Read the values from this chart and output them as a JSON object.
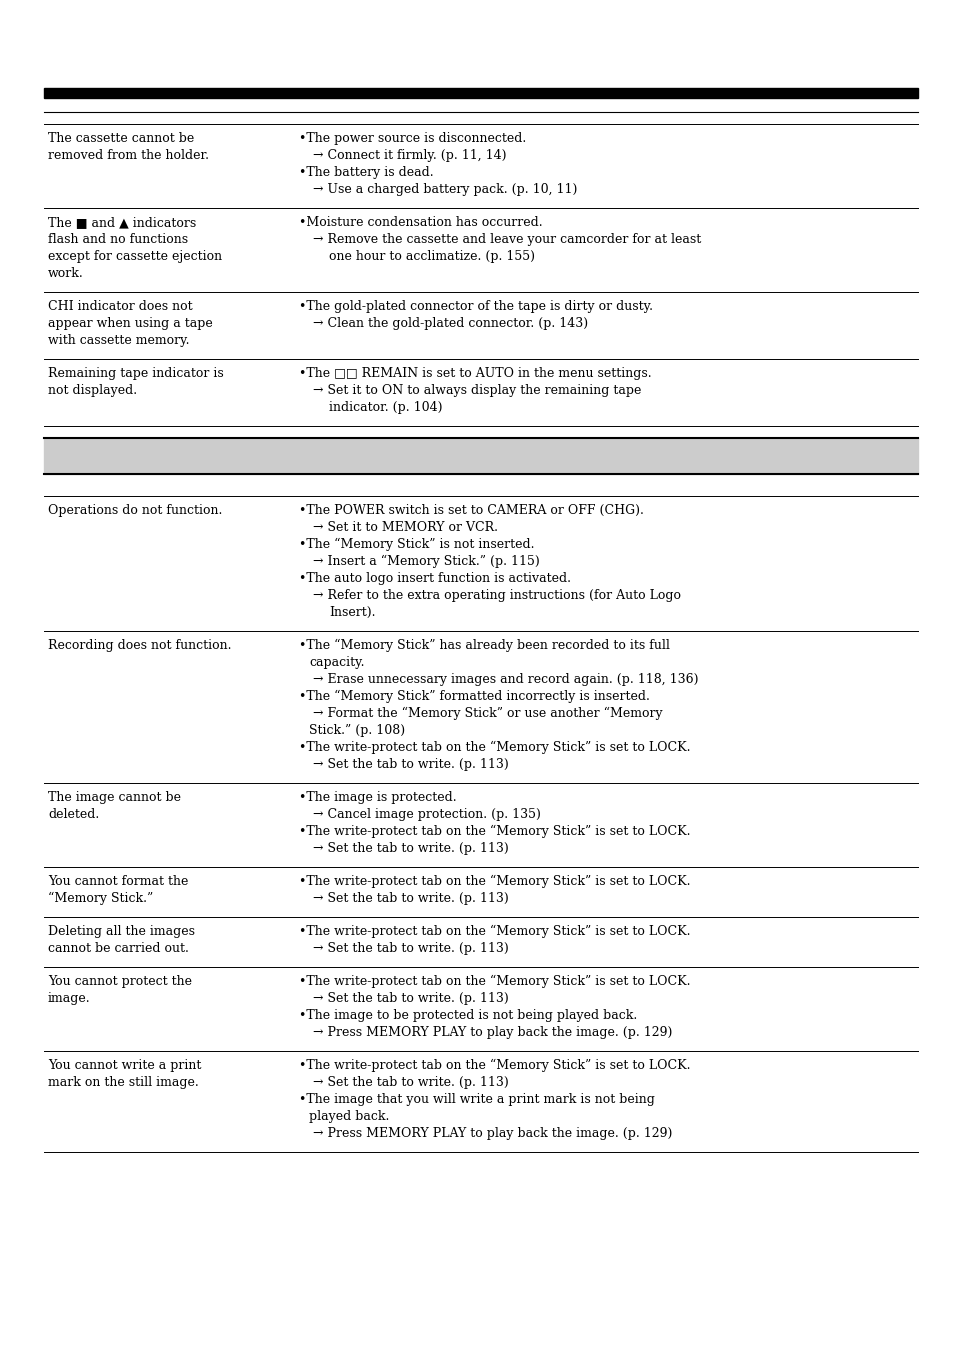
{
  "bg_color": "#ffffff",
  "text_color": "#000000",
  "gray_bar_color": "#cccccc",
  "rows_section1": [
    {
      "left": [
        "The cassette cannot be",
        "removed from the holder."
      ],
      "right": [
        {
          "type": "bullet",
          "text": "The power source is disconnected."
        },
        {
          "type": "arrow",
          "text": "Connect it firmly. (p. 11, 14)"
        },
        {
          "type": "bullet",
          "text": "The battery is dead."
        },
        {
          "type": "arrow",
          "text": "Use a charged battery pack. (p. 10, 11)"
        }
      ]
    },
    {
      "left": [
        "The ■ and ▲ indicators",
        "flash and no functions",
        "except for cassette ejection",
        "work."
      ],
      "right": [
        {
          "type": "bullet",
          "text": "Moisture condensation has occurred."
        },
        {
          "type": "arrow",
          "text": "Remove the cassette and leave your camcorder for at least"
        },
        {
          "type": "cont",
          "text": "one hour to acclimatize. (p. 155)"
        }
      ]
    },
    {
      "left": [
        "CHI indicator does not",
        "appear when using a tape",
        "with cassette memory."
      ],
      "right": [
        {
          "type": "bullet",
          "text": "The gold-plated connector of the tape is dirty or dusty."
        },
        {
          "type": "arrow",
          "text": "Clean the gold-plated connector. (p. 143)"
        }
      ]
    },
    {
      "left": [
        "Remaining tape indicator is",
        "not displayed."
      ],
      "right": [
        {
          "type": "bullet",
          "text": "The □□ REMAIN is set to AUTO in the menu settings."
        },
        {
          "type": "arrow",
          "text": "Set it to ON to always display the remaining tape"
        },
        {
          "type": "cont",
          "text": "indicator. (p. 104)"
        }
      ]
    }
  ],
  "rows_section2": [
    {
      "left": [
        "Operations do not function."
      ],
      "right": [
        {
          "type": "bullet",
          "text": "The POWER switch is set to CAMERA or OFF (CHG)."
        },
        {
          "type": "arrow",
          "text": "Set it to MEMORY or VCR."
        },
        {
          "type": "bullet",
          "text": "The “Memory Stick” is not inserted."
        },
        {
          "type": "arrow",
          "text": "Insert a “Memory Stick.” (p. 115)"
        },
        {
          "type": "bullet",
          "text": "The auto logo insert function is activated."
        },
        {
          "type": "arrow",
          "text": "Refer to the extra operating instructions (for Auto Logo"
        },
        {
          "type": "cont",
          "text": "Insert)."
        }
      ]
    },
    {
      "left": [
        "Recording does not function."
      ],
      "right": [
        {
          "type": "bullet",
          "text": "The “Memory Stick” has already been recorded to its full"
        },
        {
          "type": "cont2",
          "text": "capacity."
        },
        {
          "type": "arrow",
          "text": "Erase unnecessary images and record again. (p. 118, 136)"
        },
        {
          "type": "bullet",
          "text": "The “Memory Stick” formatted incorrectly is inserted."
        },
        {
          "type": "arrow",
          "text": "Format the “Memory Stick” or use another “Memory"
        },
        {
          "type": "cont2",
          "text": "Stick.” (p. 108)"
        },
        {
          "type": "bullet",
          "text": "The write-protect tab on the “Memory Stick” is set to LOCK."
        },
        {
          "type": "arrow",
          "text": "Set the tab to write. (p. 113)"
        }
      ]
    },
    {
      "left": [
        "The image cannot be",
        "deleted."
      ],
      "right": [
        {
          "type": "bullet",
          "text": "The image is protected."
        },
        {
          "type": "arrow",
          "text": "Cancel image protection. (p. 135)"
        },
        {
          "type": "bullet",
          "text": "The write-protect tab on the “Memory Stick” is set to LOCK."
        },
        {
          "type": "arrow",
          "text": "Set the tab to write. (p. 113)"
        }
      ]
    },
    {
      "left": [
        "You cannot format the",
        "“Memory Stick.”"
      ],
      "right": [
        {
          "type": "bullet",
          "text": "The write-protect tab on the “Memory Stick” is set to LOCK."
        },
        {
          "type": "arrow",
          "text": "Set the tab to write. (p. 113)"
        }
      ]
    },
    {
      "left": [
        "Deleting all the images",
        "cannot be carried out."
      ],
      "right": [
        {
          "type": "bullet",
          "text": "The write-protect tab on the “Memory Stick” is set to LOCK."
        },
        {
          "type": "arrow",
          "text": "Set the tab to write. (p. 113)"
        }
      ]
    },
    {
      "left": [
        "You cannot protect the",
        "image."
      ],
      "right": [
        {
          "type": "bullet",
          "text": "The write-protect tab on the “Memory Stick” is set to LOCK."
        },
        {
          "type": "arrow",
          "text": "Set the tab to write. (p. 113)"
        },
        {
          "type": "bullet",
          "text": "The image to be protected is not being played back."
        },
        {
          "type": "arrow",
          "text": "Press MEMORY PLAY to play back the image. (p. 129)"
        }
      ]
    },
    {
      "left": [
        "You cannot write a print",
        "mark on the still image."
      ],
      "right": [
        {
          "type": "bullet",
          "text": "The write-protect tab on the “Memory Stick” is set to LOCK."
        },
        {
          "type": "arrow",
          "text": "Set the tab to write. (p. 113)"
        },
        {
          "type": "bullet",
          "text": "The image that you will write a print mark is not being"
        },
        {
          "type": "cont2",
          "text": "played back."
        },
        {
          "type": "arrow",
          "text": "Press MEMORY PLAY to play back the image. (p. 129)"
        }
      ]
    }
  ]
}
